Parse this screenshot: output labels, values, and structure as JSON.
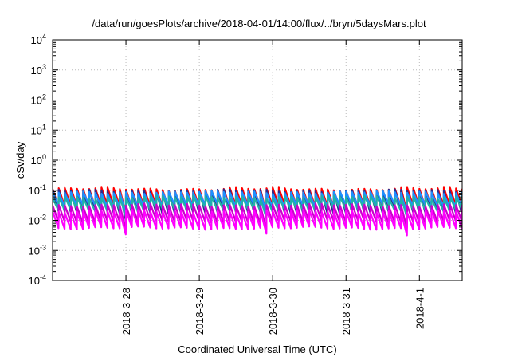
{
  "chart_data": {
    "type": "line",
    "title": "/data/run/goesPlots/archive/2018-04-01/14:00/flux/../bryn/5daysMars.plot",
    "xlabel": "Coordinated Universal Time (UTC)",
    "ylabel": "cSv/day",
    "yscale": "log",
    "ylim": [
      0.0001,
      10000
    ],
    "y_ticks": [
      {
        "base": "10",
        "exp": "-4",
        "value": 0.0001
      },
      {
        "base": "10",
        "exp": "-3",
        "value": 0.001
      },
      {
        "base": "10",
        "exp": "-2",
        "value": 0.01
      },
      {
        "base": "10",
        "exp": "-1",
        "value": 0.1
      },
      {
        "base": "10",
        "exp": "0",
        "value": 1
      },
      {
        "base": "10",
        "exp": "1",
        "value": 10
      },
      {
        "base": "10",
        "exp": "2",
        "value": 100
      },
      {
        "base": "10",
        "exp": "3",
        "value": 1000
      },
      {
        "base": "10",
        "exp": "4",
        "value": 10000
      }
    ],
    "xlim": [
      "2018-03-27 00:00",
      "2018-04-01 14:00"
    ],
    "x_ticks": [
      "2018-3-28",
      "2018-3-29",
      "2018-3-30",
      "2018-3-31",
      "2018-4-1"
    ],
    "grid": true,
    "legend": "none",
    "sawtooth_period_hours": 2,
    "series": [
      {
        "color": "#ff0000",
        "peak": 0.11,
        "trough": 0.028
      },
      {
        "color": "#2c2c8c",
        "peak": 0.095,
        "trough": 0.018
      },
      {
        "color": "#1e90ff",
        "peak": 0.085,
        "trough": 0.03
      },
      {
        "color": "#20b2aa",
        "peak": 0.06,
        "trough": 0.022
      },
      {
        "color": "#cc00cc",
        "peak": 0.032,
        "trough": 0.009
      },
      {
        "color": "#ff00ff",
        "peak": 0.02,
        "trough": 0.0055
      }
    ]
  }
}
